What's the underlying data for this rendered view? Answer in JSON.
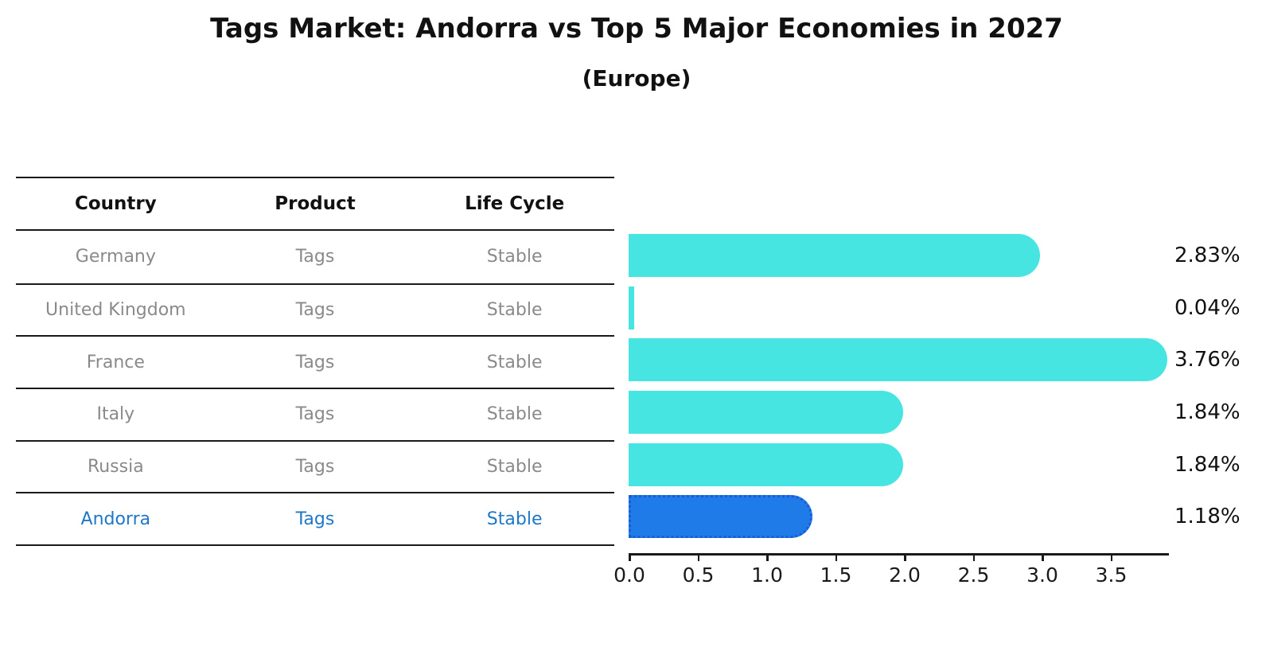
{
  "title": "Tags Market: Andorra vs Top 5 Major Economies in 2027",
  "subtitle": "(Europe)",
  "table": {
    "headers": [
      "Country",
      "Product",
      "Life Cycle"
    ],
    "rows": [
      {
        "country": "Germany",
        "product": "Tags",
        "life_cycle": "Stable",
        "highlighted": false
      },
      {
        "country": "United Kingdom",
        "product": "Tags",
        "life_cycle": "Stable",
        "highlighted": false
      },
      {
        "country": "France",
        "product": "Tags",
        "life_cycle": "Stable",
        "highlighted": false
      },
      {
        "country": "Italy",
        "product": "Tags",
        "life_cycle": "Stable",
        "highlighted": false
      },
      {
        "country": "Russia",
        "product": "Tags",
        "life_cycle": "Stable",
        "highlighted": false
      },
      {
        "country": "Andorra",
        "product": "Tags",
        "life_cycle": "Stable",
        "highlighted": true
      }
    ]
  },
  "chart_data": {
    "type": "bar",
    "orientation": "horizontal",
    "title": "Tags Market: Andorra vs Top 5 Major Economies in 2027",
    "subtitle": "(Europe)",
    "categories": [
      "Germany",
      "United Kingdom",
      "France",
      "Italy",
      "Russia",
      "Andorra"
    ],
    "values": [
      2.83,
      0.04,
      3.76,
      1.84,
      1.84,
      1.18
    ],
    "value_labels": [
      "2.83%",
      "0.04%",
      "3.76%",
      "1.84%",
      "1.84%",
      "1.18%"
    ],
    "x_tick_values": [
      0.0,
      0.5,
      1.0,
      1.5,
      2.0,
      2.5,
      3.0,
      3.5
    ],
    "x_tick_labels": [
      "0.0",
      "0.5",
      "1.0",
      "1.5",
      "2.0",
      "2.5",
      "3.0",
      "3.5"
    ],
    "xlim": [
      0,
      3.93
    ],
    "unit": "%",
    "grid": false,
    "legend": false,
    "highlight_index": 5
  },
  "colors": {
    "bar": "#46e5e2",
    "highlight_bar": "#1e7be8",
    "highlight_border": "#1a5cd6",
    "highlight_text": "#1f77c8",
    "row_text": "#8a8a8a",
    "heading_text": "#111111",
    "axis": "#1a1a1a"
  }
}
